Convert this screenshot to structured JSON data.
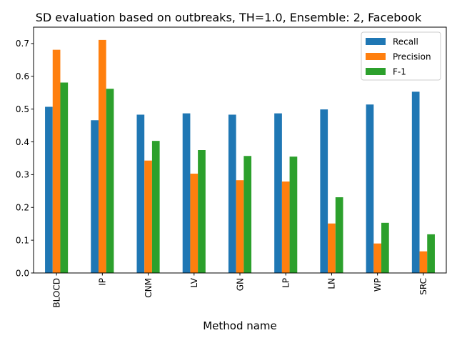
{
  "chart_data": {
    "type": "bar",
    "title": "SD evaluation based on outbreaks, TH=1.0, Ensemble: 2, Facebook",
    "xlabel": "Method name",
    "ylabel": "",
    "categories": [
      "BLOCD",
      "IP",
      "CNM",
      "LV",
      "GN",
      "LP",
      "LN",
      "WP",
      "SRC"
    ],
    "series": [
      {
        "name": "Recall",
        "color": "#1f77b4",
        "values": [
          0.507,
          0.466,
          0.483,
          0.487,
          0.483,
          0.487,
          0.499,
          0.514,
          0.553
        ]
      },
      {
        "name": "Precision",
        "color": "#ff7f0e",
        "values": [
          0.681,
          0.711,
          0.343,
          0.303,
          0.283,
          0.279,
          0.151,
          0.09,
          0.066
        ]
      },
      {
        "name": "F-1",
        "color": "#2ca02c",
        "values": [
          0.581,
          0.562,
          0.403,
          0.375,
          0.357,
          0.355,
          0.231,
          0.153,
          0.118
        ]
      }
    ],
    "ylim": [
      0.0,
      0.75
    ],
    "yticks": [
      0.0,
      0.1,
      0.2,
      0.3,
      0.4,
      0.5,
      0.6,
      0.7
    ],
    "ytick_labels": [
      "0.0",
      "0.1",
      "0.2",
      "0.3",
      "0.4",
      "0.5",
      "0.6",
      "0.7"
    ],
    "legend_position": "top-right",
    "grid": false
  }
}
